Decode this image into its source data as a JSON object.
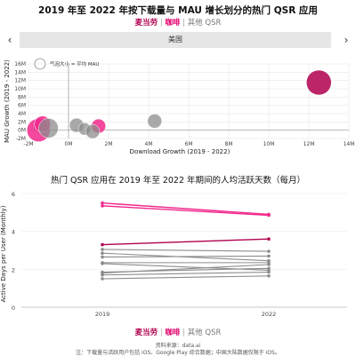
{
  "title": "2019 年至 2022 年按下载量与 MAU 增长划分的热门 QSR 应用",
  "filters": {
    "mcd": "麦当劳",
    "coffee": "咖啡",
    "other": "其他 QSR",
    "sep": "|"
  },
  "selector": {
    "value": "美国",
    "prev": "‹",
    "next": "›"
  },
  "subtitle": "热门 QSR 应用在 2019 年至 2022 年期间的人均活跃天数（每月）",
  "legend2": {
    "mcd": "麦当劳",
    "coffee": "咖啡",
    "other": "其他 QSR",
    "sep": "|"
  },
  "footer": {
    "source": "资料来源：data.ai",
    "note": "注：下载量与活跃用户包括 iOS、Google Play 综合数据；中国大陆数据仅限于 iOS。"
  },
  "colors": {
    "mcd": "#b0004f",
    "coffee": "#f0288c",
    "other": "#8c8c8c"
  },
  "chart_data": [
    {
      "type": "scatter",
      "xlabel": "Download Growth (2019 - 2022)",
      "ylabel": "MAU Growth (2019 - 2022)",
      "xlim": [
        -2000000,
        14000000
      ],
      "ylim": [
        -2000000,
        16000000
      ],
      "xticks": [
        "-2M",
        "0M",
        "2M",
        "4M",
        "6M",
        "8M",
        "10M",
        "12M",
        "14M"
      ],
      "yticks": [
        "-2M",
        "0M",
        "2M",
        "4M",
        "6M",
        "8M",
        "10M",
        "12M",
        "14M",
        "16M"
      ],
      "size_legend": "气泡大小 = 平均 MAU",
      "grid": true,
      "points": [
        {
          "group": "mcd",
          "x": 12500000,
          "y": 11500000,
          "r": 14
        },
        {
          "group": "coffee",
          "x": 1500000,
          "y": 1000000,
          "r": 8
        },
        {
          "group": "coffee",
          "x": -1500000,
          "y": 0,
          "r": 13
        },
        {
          "group": "coffee",
          "x": -1300000,
          "y": 1500000,
          "r": 9
        },
        {
          "group": "other",
          "x": -1000000,
          "y": 500000,
          "r": 11
        },
        {
          "group": "other",
          "x": 400000,
          "y": 1200000,
          "r": 8
        },
        {
          "group": "other",
          "x": 800000,
          "y": 300000,
          "r": 7
        },
        {
          "group": "other",
          "x": 1200000,
          "y": -300000,
          "r": 8
        },
        {
          "group": "other",
          "x": 4300000,
          "y": 2200000,
          "r": 8
        }
      ]
    },
    {
      "type": "line",
      "ylabel": "Active Days per User (Monthly)",
      "categories": [
        "2019",
        "2022"
      ],
      "ylim": [
        0,
        6
      ],
      "yticks": [
        0,
        2,
        4,
        6
      ],
      "series": [
        {
          "group": "coffee",
          "values": [
            5.5,
            4.9
          ]
        },
        {
          "group": "coffee",
          "values": [
            5.35,
            4.85
          ]
        },
        {
          "group": "mcd",
          "values": [
            3.3,
            3.6
          ]
        },
        {
          "group": "other",
          "values": [
            3.05,
            2.95
          ]
        },
        {
          "group": "other",
          "values": [
            2.85,
            2.45
          ]
        },
        {
          "group": "other",
          "values": [
            2.65,
            2.7
          ]
        },
        {
          "group": "other",
          "values": [
            2.35,
            2.35
          ]
        },
        {
          "group": "other",
          "values": [
            2.3,
            1.95
          ]
        },
        {
          "group": "other",
          "values": [
            1.85,
            2.05
          ]
        },
        {
          "group": "other",
          "values": [
            1.8,
            2.25
          ]
        },
        {
          "group": "other",
          "values": [
            1.7,
            1.85
          ]
        },
        {
          "group": "other",
          "values": [
            1.5,
            1.65
          ]
        }
      ]
    }
  ]
}
